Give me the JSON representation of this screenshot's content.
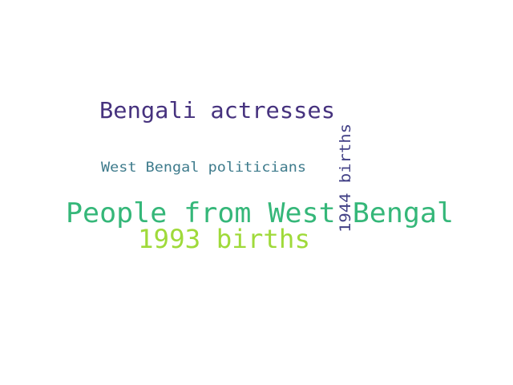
{
  "word_cloud": {
    "words": [
      {
        "text": "People from West Bengal",
        "color": "#35b779"
      },
      {
        "text": "Bengali actresses",
        "color": "#46327e"
      },
      {
        "text": "1993 births",
        "color": "#9fda3a"
      },
      {
        "text": "West Bengal politicians",
        "color": "#3e7b8c"
      },
      {
        "text": "1944 births",
        "color": "#424086",
        "orientation": "vertical"
      }
    ]
  }
}
